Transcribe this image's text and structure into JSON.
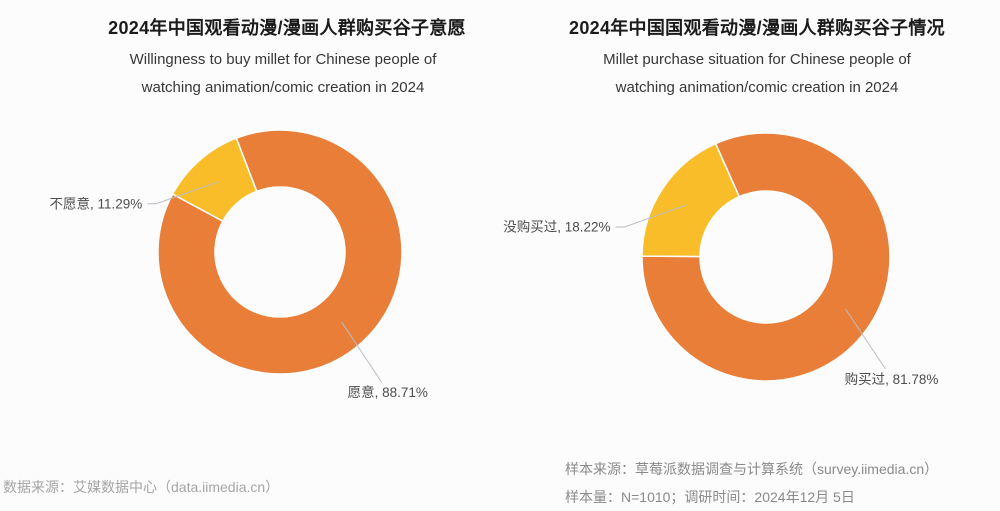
{
  "chart_data": [
    {
      "type": "pie",
      "donut": true,
      "title": "2024年中国观看动漫/漫画人群购买谷子意愿",
      "subtitle_line1": "Willingness to buy millet for Chinese people of",
      "subtitle_line2": "watching animation/comic creation in 2024",
      "legend": "none",
      "unit": "%",
      "slices": [
        {
          "label": "愿意",
          "value": 88.71,
          "display": "愿意, 88.71%",
          "color": "#E87E38"
        },
        {
          "label": "不愿意",
          "value": 11.29,
          "display": "不愿意, 11.29%",
          "color": "#FABD2A"
        }
      ]
    },
    {
      "type": "pie",
      "donut": true,
      "title": "2024年中国国观看动漫/漫画人群购买谷子情况",
      "subtitle_line1": "Millet purchase situation for Chinese people of",
      "subtitle_line2": "watching animation/comic creation in 2024",
      "legend": "none",
      "unit": "%",
      "slices": [
        {
          "label": "购买过",
          "value": 81.78,
          "display": "购买过, 81.78%",
          "color": "#E87E38"
        },
        {
          "label": "没购买过",
          "value": 18.22,
          "display": "没购买过, 18.22%",
          "color": "#FABD2A"
        }
      ]
    }
  ],
  "footer": {
    "left_source": "数据来源：艾媒数据中心（data.iimedia.cn）",
    "right_source": "样本来源：草莓派数据调查与计算系统（survey.iimedia.cn）",
    "right_sample": "样本量：N=1010；调研时间：2024年12月 5日"
  },
  "colors": {
    "orange": "#E87E38",
    "yellow": "#FABD2A",
    "leader_line": "#B7BEC6",
    "label_text": "#4D4D4D",
    "background": "#FCFCFC"
  }
}
